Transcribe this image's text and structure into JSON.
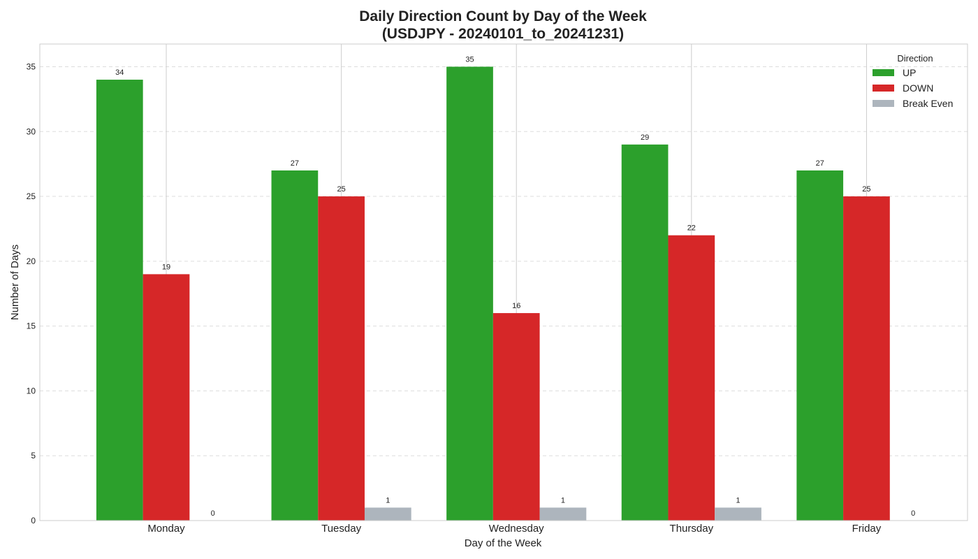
{
  "chart_data": {
    "type": "bar",
    "title": "Daily Direction Count by Day of the Week",
    "subtitle": "(USDJPY - 20240101_to_20241231)",
    "xlabel": "Day of the Week",
    "ylabel": "Number of Days",
    "categories": [
      "Monday",
      "Tuesday",
      "Wednesday",
      "Thursday",
      "Friday"
    ],
    "series": [
      {
        "name": "UP",
        "values": [
          34,
          27,
          35,
          29,
          27
        ],
        "color": "#2ca02c"
      },
      {
        "name": "DOWN",
        "values": [
          19,
          25,
          16,
          22,
          25
        ],
        "color": "#d62728"
      },
      {
        "name": "Break Even",
        "values": [
          0,
          1,
          1,
          1,
          0
        ],
        "color": "#adb5bd"
      }
    ],
    "ylim": [
      0,
      36.75
    ],
    "yticks": [
      0,
      5,
      10,
      15,
      20,
      25,
      30,
      35
    ],
    "grid": true,
    "legend": {
      "title": "Direction",
      "position": "top-right"
    }
  }
}
